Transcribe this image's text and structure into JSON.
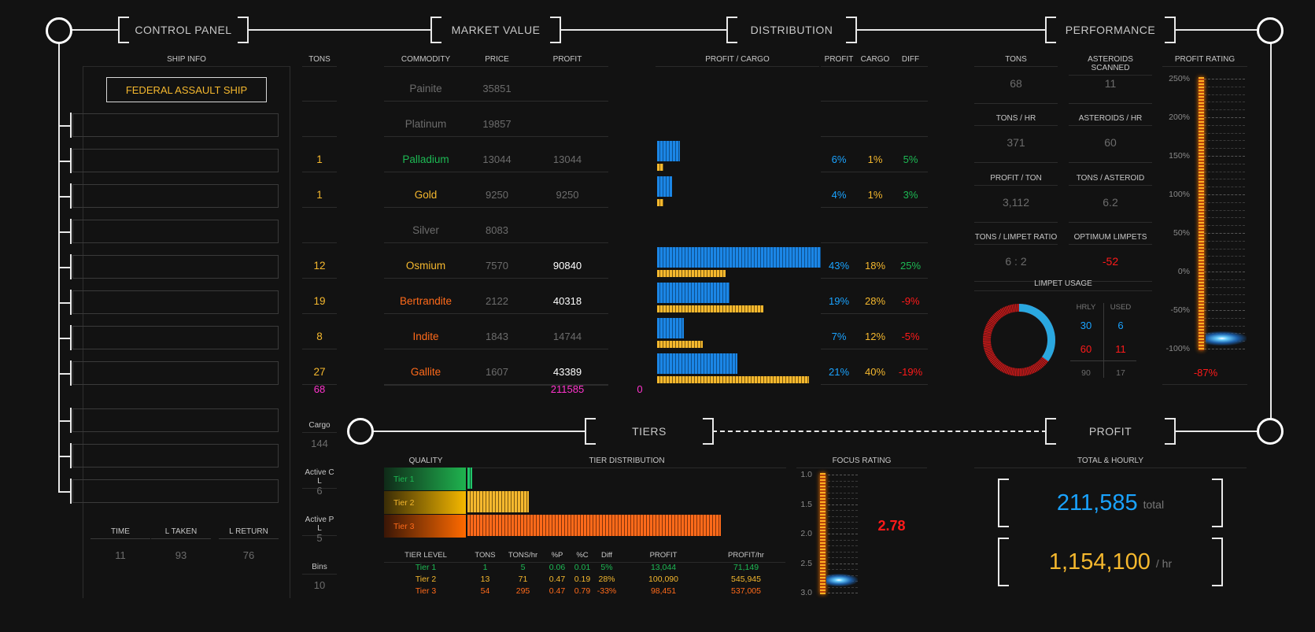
{
  "headers": {
    "control_panel": "CONTROL PANEL",
    "market_value": "MARKET VALUE",
    "distribution": "DISTRIBUTION",
    "performance": "PERFORMANCE",
    "tiers": "TIERS",
    "profit": "PROFIT"
  },
  "ship": {
    "section_label": "SHIP INFO",
    "name": "FEDERAL ASSAULT SHIP"
  },
  "trip": {
    "labels": [
      "TIME",
      "L TAKEN",
      "L RETURN"
    ],
    "values": [
      "11",
      "93",
      "76"
    ]
  },
  "market": {
    "headers": {
      "tons": "TONS",
      "commodity": "COMMODITY",
      "price": "PRICE",
      "profit": "PROFIT"
    },
    "rows": [
      {
        "tons": "",
        "name": "Painite",
        "price": "35851",
        "profit": "",
        "color": "#6c6c6c"
      },
      {
        "tons": "",
        "name": "Platinum",
        "price": "19857",
        "profit": "",
        "color": "#6c6c6c"
      },
      {
        "tons": "1",
        "name": "Palladium",
        "price": "13044",
        "profit": "13044",
        "color": "#1db954"
      },
      {
        "tons": "1",
        "name": "Gold",
        "price": "9250",
        "profit": "9250",
        "color": "#f5b82e"
      },
      {
        "tons": "",
        "name": "Silver",
        "price": "8083",
        "profit": "",
        "color": "#6c6c6c"
      },
      {
        "tons": "12",
        "name": "Osmium",
        "price": "7570",
        "profit": "90840",
        "color": "#f5b82e"
      },
      {
        "tons": "19",
        "name": "Bertrandite",
        "price": "2122",
        "profit": "40318",
        "color": "#ff6a1a"
      },
      {
        "tons": "8",
        "name": "Indite",
        "price": "1843",
        "profit": "14744",
        "color": "#ff6a1a"
      },
      {
        "tons": "27",
        "name": "Gallite",
        "price": "1607",
        "profit": "43389",
        "color": "#ff6a1a"
      }
    ],
    "totals": {
      "tons": "68",
      "profit": "211585",
      "extra": "0"
    }
  },
  "side_stats": [
    {
      "label": "Cargo",
      "value": "144"
    },
    {
      "label": "Active C L",
      "value": "6"
    },
    {
      "label": "Active P L",
      "value": "5"
    },
    {
      "label": "Bins",
      "value": "10"
    }
  ],
  "distribution": {
    "headers": {
      "chart": "PROFIT / CARGO",
      "profit": "PROFIT",
      "cargo": "CARGO",
      "diff": "DIFF"
    },
    "rows": [
      {
        "row": 2,
        "profit_pct": 6,
        "cargo_pct": 1,
        "profit": "6%",
        "cargo": "1%",
        "diff": "5%",
        "diff_color": "#1db954"
      },
      {
        "row": 3,
        "profit_pct": 4,
        "cargo_pct": 1,
        "profit": "4%",
        "cargo": "1%",
        "diff": "3%",
        "diff_color": "#1db954"
      },
      {
        "row": 5,
        "profit_pct": 43,
        "cargo_pct": 18,
        "profit": "43%",
        "cargo": "18%",
        "diff": "25%",
        "diff_color": "#1db954"
      },
      {
        "row": 6,
        "profit_pct": 19,
        "cargo_pct": 28,
        "profit": "19%",
        "cargo": "28%",
        "diff": "-9%",
        "diff_color": "#ff1a1a"
      },
      {
        "row": 7,
        "profit_pct": 7,
        "cargo_pct": 12,
        "profit": "7%",
        "cargo": "12%",
        "diff": "-5%",
        "diff_color": "#ff1a1a"
      },
      {
        "row": 8,
        "profit_pct": 21,
        "cargo_pct": 40,
        "profit": "21%",
        "cargo": "40%",
        "diff": "-19%",
        "diff_color": "#ff1a1a"
      }
    ]
  },
  "performance": {
    "stats": [
      {
        "label": "TONS",
        "value": "68",
        "color": "#6c6c6c"
      },
      {
        "label": "ASTEROIDS SCANNED",
        "value": "11",
        "color": "#6c6c6c"
      },
      {
        "label": "TONS / HR",
        "value": "371",
        "color": "#6c6c6c"
      },
      {
        "label": "ASTEROIDS / HR",
        "value": "60",
        "color": "#6c6c6c"
      },
      {
        "label": "PROFIT / TON",
        "value": "3,112",
        "color": "#6c6c6c"
      },
      {
        "label": "TONS / ASTEROID",
        "value": "6.2",
        "color": "#6c6c6c"
      },
      {
        "label": "TONS / LIMPET RATIO",
        "value": "6 : 2",
        "color": "#6c6c6c"
      },
      {
        "label": "OPTIMUM LIMPETS",
        "value": "-52",
        "color": "#ff1a1a"
      }
    ],
    "limpet": {
      "title": "LIMPET USAGE",
      "col_hrly": "HRLY",
      "col_used": "USED",
      "row1": [
        "30",
        "6"
      ],
      "row2": [
        "60",
        "11"
      ],
      "row3": [
        "90",
        "17"
      ],
      "donut_blue_fraction": 0.35
    },
    "profit_rating": {
      "title": "PROFIT RATING",
      "ticks": [
        "250%",
        "200%",
        "150%",
        "100%",
        "50%",
        "0%",
        "-50%",
        "-100%"
      ],
      "value_pct": -87,
      "value_label": "-87%"
    }
  },
  "tiers": {
    "quality_label": "QUALITY",
    "dist_label": "TIER DISTRIBUTION",
    "tiers": [
      {
        "name": "Tier 1",
        "tons": 1,
        "color": "#1db954"
      },
      {
        "name": "Tier 2",
        "tons": 13,
        "color": "#f5b82e"
      },
      {
        "name": "Tier 3",
        "tons": 54,
        "color": "#ff6a1a"
      }
    ],
    "table_headers": [
      "TIER LEVEL",
      "TONS",
      "TONS/hr",
      "%P",
      "%C",
      "Diff",
      "PROFIT",
      "PROFIT/hr"
    ],
    "table_rows": [
      [
        "Tier 1",
        "1",
        "5",
        "0.06",
        "0.01",
        "5%",
        "13,044",
        "71,149"
      ],
      [
        "Tier 2",
        "13",
        "71",
        "0.47",
        "0.19",
        "28%",
        "100,090",
        "545,945"
      ],
      [
        "Tier 3",
        "54",
        "295",
        "0.47",
        "0.79",
        "-33%",
        "98,451",
        "537,005"
      ]
    ],
    "focus": {
      "title": "FOCUS RATING",
      "ticks": [
        "1.0",
        "1.5",
        "2.0",
        "2.5",
        "3.0"
      ],
      "value": 2.78,
      "value_label": "2.78"
    }
  },
  "profit": {
    "title": "TOTAL & HOURLY",
    "total": "211,585",
    "total_unit": "total",
    "hourly": "1,154,100",
    "hourly_unit": "/ hr"
  }
}
